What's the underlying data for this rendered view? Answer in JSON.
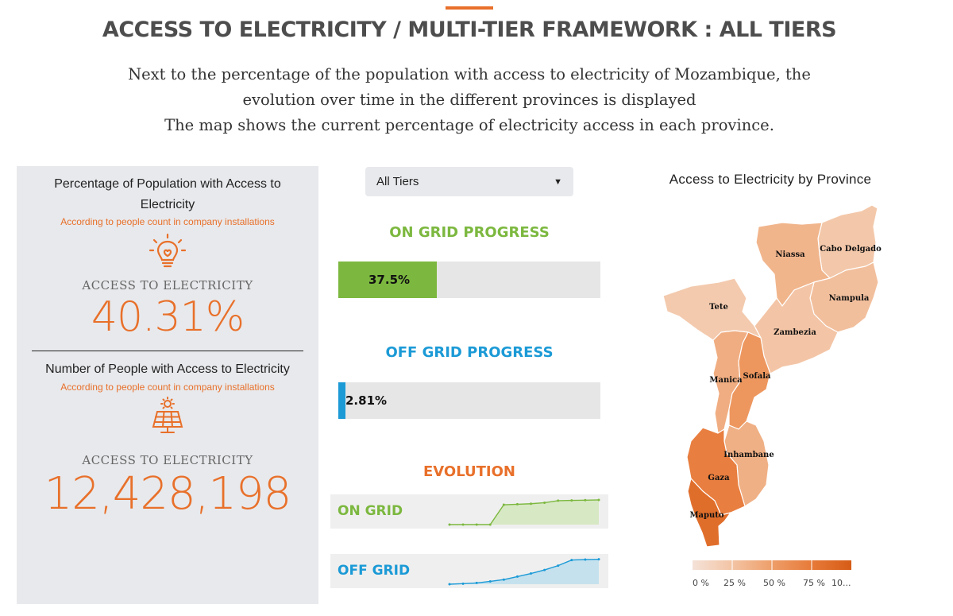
{
  "header": {
    "title": "ACCESS TO ELECTRICITY / MULTI-TIER FRAMEWORK : ALL TIERS",
    "intro_lines": [
      "Next to the percentage of the population with access to electricity of Mozambique, the",
      "evolution over time in the different provinces is displayed",
      "The map shows the current percentage of electricity access in each province."
    ]
  },
  "percentage_card": {
    "title": "Percentage of Population with Access to Electricity",
    "subtitle": "According to people count in company installations",
    "icon": "lightbulb-icon",
    "label": "ACCESS TO ELECTRICITY",
    "value": "40.31%"
  },
  "people_card": {
    "title": "Number of People with Access to Electricity",
    "subtitle": "According to people count in company installations",
    "icon": "solar-panel-icon",
    "label": "ACCESS TO ELECTRICITY",
    "value": "12,428,198"
  },
  "tier_select": {
    "selected": "All Tiers"
  },
  "on_grid_progress": {
    "title": "ON GRID PROGRESS",
    "percent": 37.5,
    "label": "37.5%"
  },
  "off_grid_progress": {
    "title": "OFF GRID PROGRESS",
    "percent": 2.81,
    "label": "2.81%"
  },
  "evolution": {
    "title": "EVOLUTION",
    "on_grid": {
      "label": "ON GRID",
      "values": [
        0,
        0,
        0,
        0,
        0.78,
        0.8,
        0.82,
        0.86,
        0.94,
        0.95,
        0.96,
        0.97
      ]
    },
    "off_grid": {
      "label": "OFF GRID",
      "values": [
        0,
        0.02,
        0.05,
        0.11,
        0.18,
        0.3,
        0.42,
        0.56,
        0.73,
        0.95,
        0.97,
        0.98
      ]
    }
  },
  "map": {
    "title": "Access to Electricity by Province",
    "provinces": [
      {
        "name": "Niassa",
        "access": 0.35
      },
      {
        "name": "Cabo Delgado",
        "access": 0.22
      },
      {
        "name": "Nampula",
        "access": 0.28
      },
      {
        "name": "Tete",
        "access": 0.2
      },
      {
        "name": "Zambezia",
        "access": 0.24
      },
      {
        "name": "Manica",
        "access": 0.4
      },
      {
        "name": "Sofala",
        "access": 0.55
      },
      {
        "name": "Inhambane",
        "access": 0.38
      },
      {
        "name": "Gaza",
        "access": 0.72
      },
      {
        "name": "Maputo",
        "access": 0.85
      }
    ],
    "legend": {
      "ticks": [
        "0 %",
        "25 %",
        "50 %",
        "75 %",
        "10..."
      ],
      "colors": [
        "#f4e2d8",
        "#f3c4a4",
        "#ee9e69",
        "#e77a39",
        "#d65c16"
      ]
    }
  },
  "colors": {
    "accent": "#e8702a",
    "on_grid": "#7cb83f",
    "off_grid": "#1b9ad6"
  }
}
